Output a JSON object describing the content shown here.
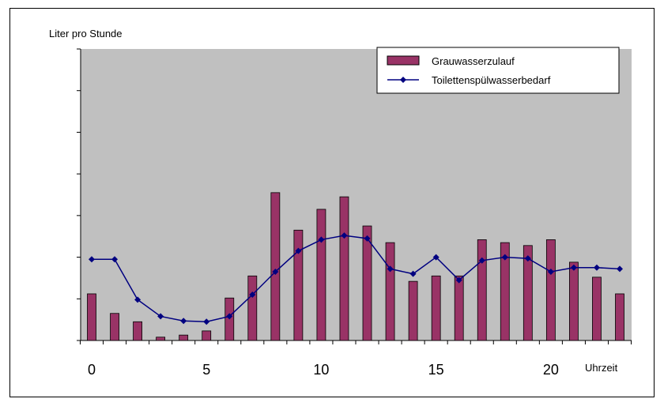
{
  "chart_data": {
    "type": "bar",
    "ylabel": "Liter pro Stunde",
    "xlabel": "Uhrzeit",
    "x": [
      0,
      1,
      2,
      3,
      4,
      5,
      6,
      7,
      8,
      9,
      10,
      11,
      12,
      13,
      14,
      15,
      16,
      17,
      18,
      19,
      20,
      21,
      22,
      23
    ],
    "x_tick_labels": [
      "0",
      "5",
      "10",
      "15",
      "20"
    ],
    "x_tick_values": [
      0,
      5,
      10,
      15,
      20
    ],
    "ylim": [
      0,
      7
    ],
    "y_grid_steps": 7,
    "grid": false,
    "legend_position": "top-right",
    "series": [
      {
        "name": "Grauwasserzulauf",
        "type": "bar",
        "values": [
          1.12,
          0.65,
          0.45,
          0.08,
          0.13,
          0.23,
          1.02,
          1.55,
          3.55,
          2.65,
          3.15,
          3.45,
          2.75,
          2.35,
          1.42,
          1.55,
          1.55,
          2.42,
          2.35,
          2.28,
          2.42,
          1.88,
          1.52,
          1.12
        ],
        "color": "#993366"
      },
      {
        "name": "Toilettenspülwasserbedarf",
        "type": "line",
        "values": [
          1.95,
          1.95,
          0.98,
          0.58,
          0.47,
          0.45,
          0.58,
          1.1,
          1.65,
          2.15,
          2.42,
          2.52,
          2.45,
          1.72,
          1.6,
          2.0,
          1.45,
          1.92,
          2.0,
          1.97,
          1.65,
          1.75,
          1.75,
          1.72
        ],
        "color": "#000080"
      }
    ]
  },
  "colors": {
    "plot_background": "#c0c0c0",
    "bar_fill": "#993366",
    "line": "#000080"
  }
}
